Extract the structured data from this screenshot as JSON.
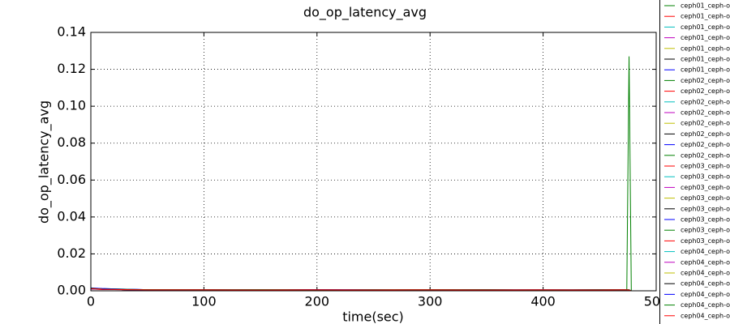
{
  "chart_data": {
    "type": "line",
    "title": "do_op_latency_avg",
    "xlabel": "time(sec)",
    "ylabel": "do_op_latency_avg",
    "xlim": [
      0,
      500
    ],
    "xticks": [
      0,
      100,
      200,
      300,
      400,
      500
    ],
    "ylim": [
      0,
      0.14
    ],
    "yticks": [
      {
        "value": 0,
        "label": "0.00"
      },
      0.02,
      0.04,
      0.06,
      0.08,
      {
        "value": 0.1,
        "label": "0.10"
      },
      0.12,
      0.14
    ],
    "grid": true,
    "legend": "upper right outside",
    "x": [
      0,
      10,
      50,
      100,
      150,
      200,
      250,
      300,
      350,
      400,
      450,
      474,
      476,
      478
    ],
    "series": [
      {
        "name": "ceph01_ceph-o",
        "color": "#008000",
        "values": [
          0.0015,
          0.001,
          0.0005,
          0.0005,
          0.0005,
          0.0005,
          0.0005,
          0.0005,
          0.0005,
          0.0005,
          0.0005,
          0.0005,
          0.0005,
          0
        ]
      },
      {
        "name": "ceph01_ceph-o",
        "color": "#ff0000",
        "values": [
          0.0012,
          0.0008,
          0.0005,
          0.0004,
          0.0005,
          0.0004,
          0.0005,
          0.0004,
          0.0005,
          0.0004,
          0.0005,
          0.0004,
          0.0005,
          0
        ]
      },
      {
        "name": "ceph01_ceph-o",
        "color": "#00bfbf",
        "values": [
          0.0014,
          0.0009,
          0.0006,
          0.0005,
          0.0005,
          0.0005,
          0.0005,
          0.0005,
          0.0005,
          0.0005,
          0.0005,
          0.0005,
          0.0005,
          0
        ]
      },
      {
        "name": "ceph01_ceph-o",
        "color": "#bf00bf",
        "values": [
          0.001,
          0.0008,
          0.0005,
          0.0005,
          0.0004,
          0.0005,
          0.0004,
          0.0005,
          0.0004,
          0.0005,
          0.0004,
          0.0005,
          0.0004,
          0
        ]
      },
      {
        "name": "ceph01_ceph-o",
        "color": "#bfbf00",
        "values": [
          0.0012,
          0.0009,
          0.0005,
          0.0004,
          0.0005,
          0.0005,
          0.0004,
          0.0005,
          0.0005,
          0.0004,
          0.0005,
          0.0005,
          0.0004,
          0
        ]
      },
      {
        "name": "ceph01_ceph-o",
        "color": "#000000",
        "values": [
          0.0013,
          0.0008,
          0.0005,
          0.0005,
          0.0005,
          0.0004,
          0.0005,
          0.0005,
          0.0004,
          0.0005,
          0.0005,
          0.0004,
          0.0005,
          0
        ]
      },
      {
        "name": "ceph01_ceph-o",
        "color": "#0000ff",
        "values": [
          0.0016,
          0.0012,
          0.0006,
          0.0005,
          0.0005,
          0.0005,
          0.0005,
          0.0005,
          0.0005,
          0.0005,
          0.0005,
          0.0005,
          0.0005,
          0
        ]
      },
      {
        "name": "ceph02_ceph-o",
        "color": "#008000",
        "values": [
          0.0012,
          0.0008,
          0.0005,
          0.0004,
          0.0004,
          0.0005,
          0.0004,
          0.0004,
          0.0005,
          0.0004,
          0.0004,
          0.0005,
          0.127,
          0
        ]
      },
      {
        "name": "ceph02_ceph-o",
        "color": "#ff0000",
        "values": [
          0.0011,
          0.0009,
          0.0005,
          0.0005,
          0.0004,
          0.0004,
          0.0005,
          0.0004,
          0.0004,
          0.0005,
          0.0004,
          0.0004,
          0.0005,
          0
        ]
      },
      {
        "name": "ceph02_ceph-o",
        "color": "#00bfbf",
        "values": [
          0.0013,
          0.0008,
          0.0006,
          0.0005,
          0.0005,
          0.0005,
          0.0005,
          0.0005,
          0.0005,
          0.0005,
          0.0005,
          0.0005,
          0.0005,
          0
        ]
      },
      {
        "name": "ceph02_ceph-o",
        "color": "#bf00bf",
        "values": [
          0.001,
          0.0007,
          0.0005,
          0.0004,
          0.0005,
          0.0004,
          0.0004,
          0.0005,
          0.0004,
          0.0004,
          0.0005,
          0.0004,
          0.0004,
          0
        ]
      },
      {
        "name": "ceph02_ceph-o",
        "color": "#bfbf00",
        "values": [
          0.0012,
          0.0008,
          0.0005,
          0.0005,
          0.0004,
          0.0005,
          0.0005,
          0.0004,
          0.0005,
          0.0005,
          0.0004,
          0.0005,
          0.0005,
          0
        ]
      },
      {
        "name": "ceph02_ceph-o",
        "color": "#000000",
        "values": [
          0.0011,
          0.0009,
          0.0005,
          0.0004,
          0.0005,
          0.0005,
          0.0004,
          0.0005,
          0.0005,
          0.0004,
          0.0005,
          0.0005,
          0.0004,
          0
        ]
      },
      {
        "name": "ceph02_ceph-o",
        "color": "#0000ff",
        "values": [
          0.0014,
          0.0012,
          0.0006,
          0.0005,
          0.0005,
          0.0005,
          0.0005,
          0.0005,
          0.0005,
          0.0005,
          0.0005,
          0.0005,
          0.0005,
          0
        ]
      },
      {
        "name": "ceph02_ceph-o",
        "color": "#008000",
        "values": [
          0.0012,
          0.0008,
          0.0005,
          0.0005,
          0.0004,
          0.0004,
          0.0005,
          0.0004,
          0.0004,
          0.0005,
          0.0004,
          0.0004,
          0.0005,
          0
        ]
      },
      {
        "name": "ceph03_ceph-o",
        "color": "#ff0000",
        "values": [
          0.0013,
          0.0009,
          0.0005,
          0.0004,
          0.0005,
          0.0005,
          0.0004,
          0.0005,
          0.0005,
          0.0004,
          0.0005,
          0.0005,
          0.0004,
          0
        ]
      },
      {
        "name": "ceph03_ceph-o",
        "color": "#00bfbf",
        "values": [
          0.0011,
          0.0008,
          0.0005,
          0.0005,
          0.0005,
          0.0004,
          0.0005,
          0.0005,
          0.0004,
          0.0005,
          0.0005,
          0.0004,
          0.0005,
          0
        ]
      },
      {
        "name": "ceph03_ceph-o",
        "color": "#bf00bf",
        "values": [
          0.001,
          0.0008,
          0.0005,
          0.0004,
          0.0004,
          0.0005,
          0.0004,
          0.0004,
          0.0005,
          0.0004,
          0.0004,
          0.0005,
          0.0004,
          0
        ]
      },
      {
        "name": "ceph03_ceph-o",
        "color": "#bfbf00",
        "values": [
          0.0012,
          0.0009,
          0.0006,
          0.0005,
          0.0005,
          0.0005,
          0.0005,
          0.0005,
          0.0005,
          0.0005,
          0.0005,
          0.0005,
          0.0005,
          0
        ]
      },
      {
        "name": "ceph03_ceph-o",
        "color": "#000000",
        "values": [
          0.0013,
          0.0008,
          0.0005,
          0.0005,
          0.0004,
          0.0005,
          0.0005,
          0.0004,
          0.0005,
          0.0005,
          0.0004,
          0.0005,
          0.0005,
          0
        ]
      },
      {
        "name": "ceph03_ceph-o",
        "color": "#0000ff",
        "values": [
          0.0011,
          0.0009,
          0.0005,
          0.0004,
          0.0005,
          0.0004,
          0.0004,
          0.0005,
          0.0004,
          0.0004,
          0.0005,
          0.0004,
          0.0004,
          0
        ]
      },
      {
        "name": "ceph03_ceph-o",
        "color": "#008000",
        "values": [
          0.0012,
          0.0008,
          0.0005,
          0.0005,
          0.0005,
          0.0005,
          0.0005,
          0.0005,
          0.0005,
          0.0005,
          0.0005,
          0.0005,
          0.0005,
          0
        ]
      },
      {
        "name": "ceph03_ceph-o",
        "color": "#ff0000",
        "values": [
          0.001,
          0.0007,
          0.0005,
          0.0004,
          0.0004,
          0.0004,
          0.0005,
          0.0004,
          0.0004,
          0.0004,
          0.0005,
          0.0004,
          0.0004,
          0
        ]
      },
      {
        "name": "ceph04_ceph-o",
        "color": "#00bfbf",
        "values": [
          0.0012,
          0.0009,
          0.0006,
          0.0005,
          0.0005,
          0.0005,
          0.0004,
          0.0005,
          0.0005,
          0.0005,
          0.0004,
          0.0005,
          0.0005,
          0
        ]
      },
      {
        "name": "ceph04_ceph-o",
        "color": "#bf00bf",
        "values": [
          0.0011,
          0.0008,
          0.0005,
          0.0005,
          0.0004,
          0.0005,
          0.0005,
          0.0004,
          0.0005,
          0.0005,
          0.0004,
          0.0005,
          0.0005,
          0
        ]
      },
      {
        "name": "ceph04_ceph-o",
        "color": "#bfbf00",
        "values": [
          0.0013,
          0.0009,
          0.0005,
          0.0004,
          0.0005,
          0.0004,
          0.0005,
          0.0005,
          0.0004,
          0.0005,
          0.0005,
          0.0004,
          0.0005,
          0
        ]
      },
      {
        "name": "ceph04_ceph-o",
        "color": "#000000",
        "values": [
          0.0012,
          0.0008,
          0.0005,
          0.0005,
          0.0005,
          0.0005,
          0.0004,
          0.0005,
          0.0005,
          0.0004,
          0.0005,
          0.0005,
          0.0004,
          0
        ]
      },
      {
        "name": "ceph04_ceph-o",
        "color": "#0000ff",
        "values": [
          0.001,
          0.0008,
          0.0005,
          0.0004,
          0.0004,
          0.0005,
          0.0005,
          0.0004,
          0.0004,
          0.0005,
          0.0005,
          0.0004,
          0.0004,
          0
        ]
      },
      {
        "name": "ceph04_ceph-o",
        "color": "#008000",
        "values": [
          0.0012,
          0.0009,
          0.0006,
          0.0005,
          0.0005,
          0.0004,
          0.0005,
          0.0005,
          0.0005,
          0.0004,
          0.0005,
          0.0005,
          0.0005,
          0
        ]
      },
      {
        "name": "ceph04_ceph-o",
        "color": "#ff0000",
        "values": [
          0.0011,
          0.0008,
          0.0005,
          0.0005,
          0.0004,
          0.0005,
          0.0004,
          0.0005,
          0.0004,
          0.0005,
          0.0004,
          0.0005,
          0.0004,
          0
        ]
      }
    ]
  }
}
